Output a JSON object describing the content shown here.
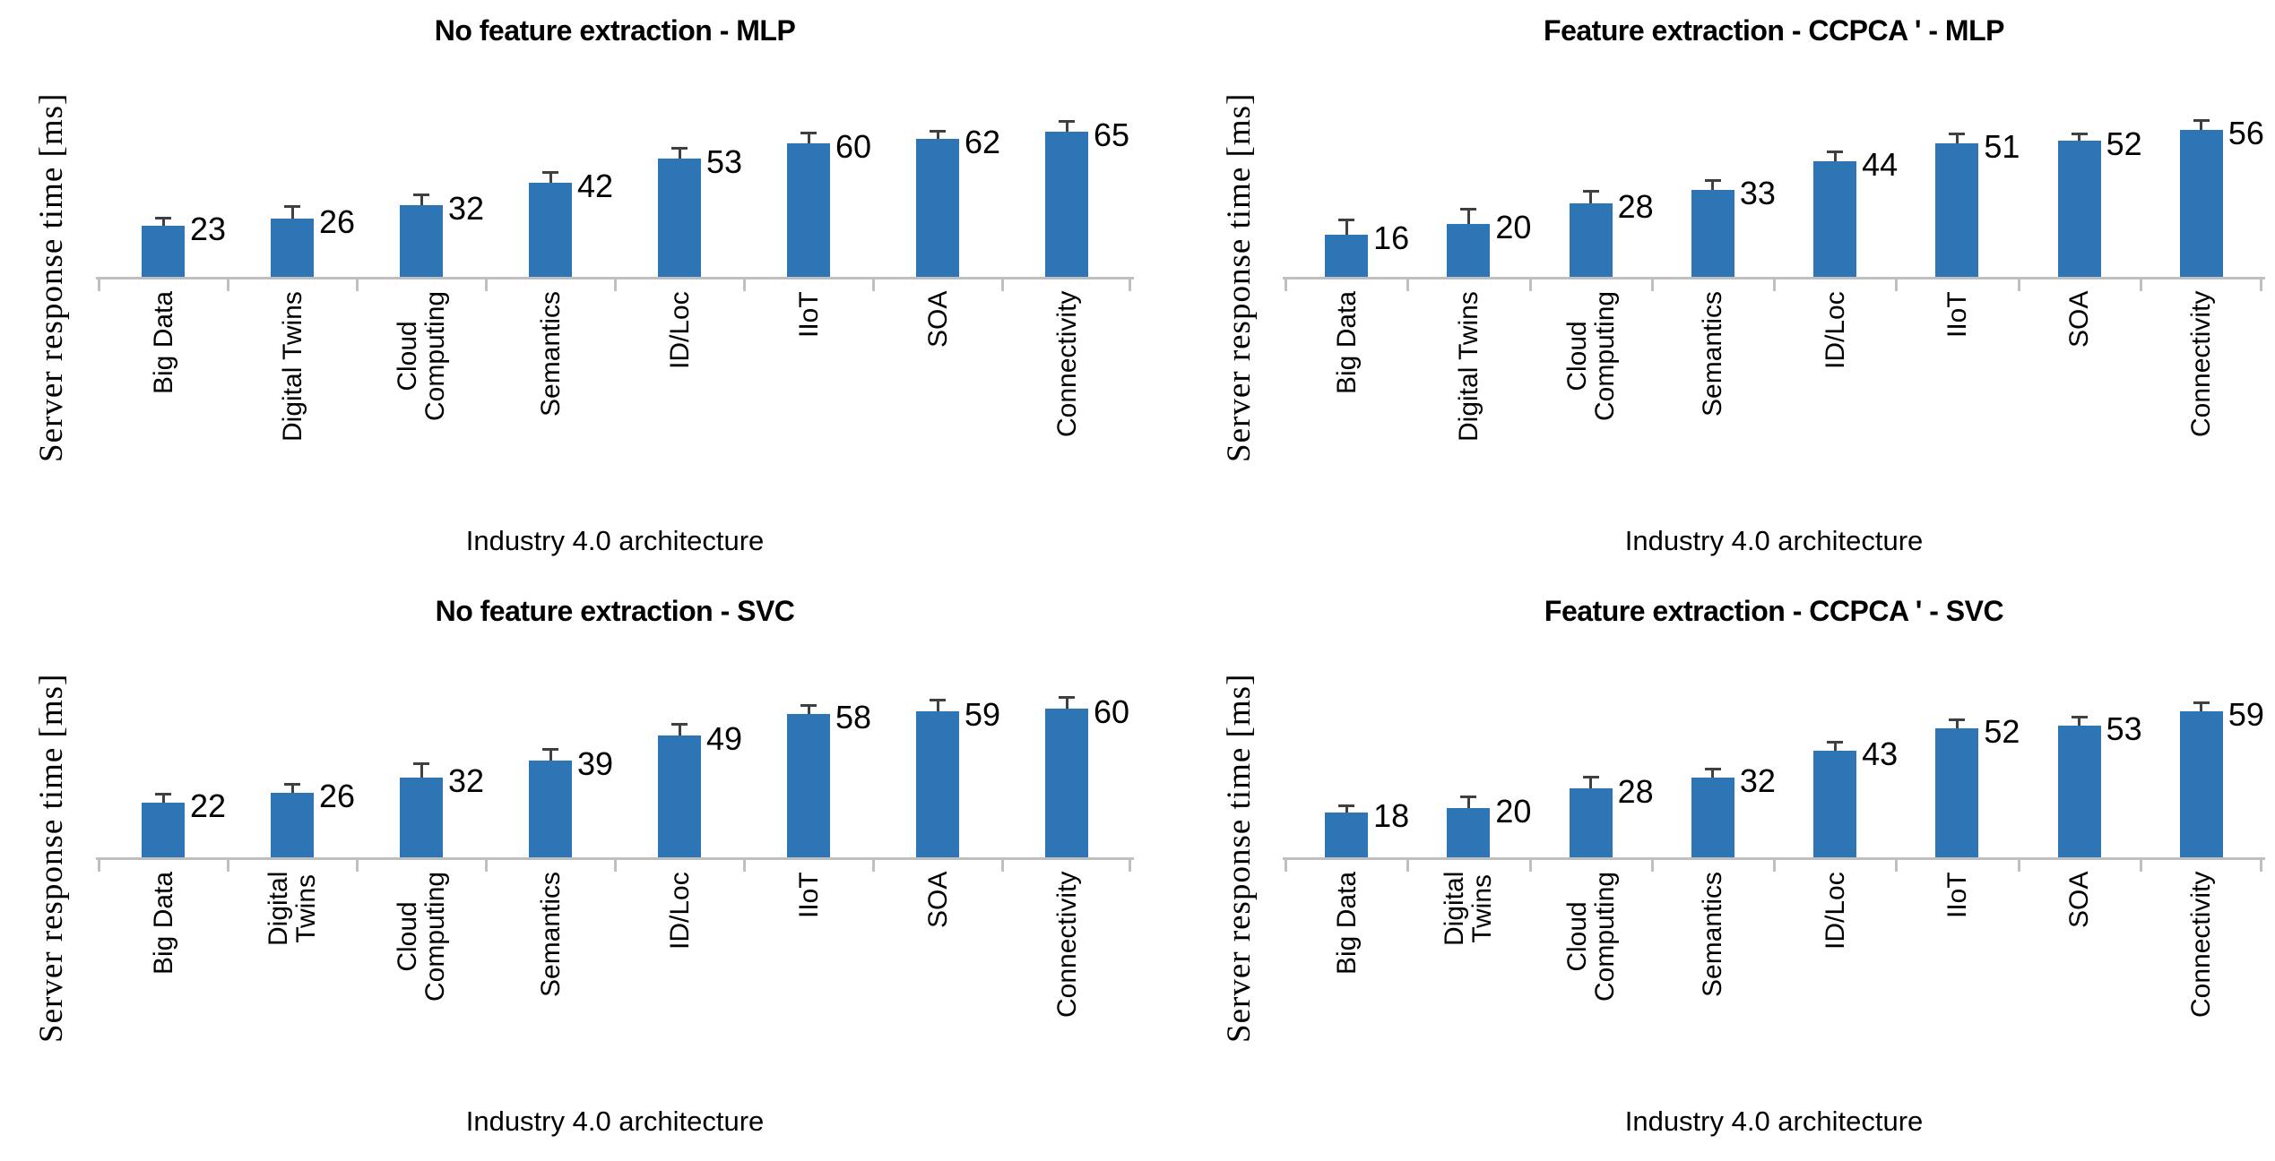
{
  "page": {
    "background": "#ffffff"
  },
  "colors": {
    "bar": "#2E75B6",
    "axis": "#BFBFBF",
    "error_bar": "#404040",
    "text": "#000000"
  },
  "chart_data": [
    {
      "type": "bar",
      "title": "No feature extraction - MLP",
      "ylabel": "Server response time [ms]",
      "xlabel": "Industry 4.0 architecture",
      "categories": [
        "Big Data",
        "Digital Twins",
        "Cloud\nComputing",
        "Semantics",
        "ID/Loc",
        "IIoT",
        "SOA",
        "Connectivity"
      ],
      "values": [
        23,
        26,
        32,
        42,
        53,
        60,
        62,
        65
      ],
      "errors": [
        3,
        5,
        4,
        4,
        4,
        4,
        3,
        4
      ],
      "ylim": [
        0,
        100
      ],
      "grid": false,
      "legend": false,
      "data_label_position": "right-of-bar-top",
      "bar_color": "#2E75B6"
    },
    {
      "type": "bar",
      "title": "Feature extraction - CCPCA ' - MLP",
      "ylabel": "Server response time [ms]",
      "xlabel": "Industry 4.0 architecture",
      "categories": [
        "Big Data",
        "Digital Twins",
        "Cloud\nComputing",
        "Semantics",
        "ID/Loc",
        "IIoT",
        "SOA",
        "Connectivity"
      ],
      "values": [
        16,
        20,
        28,
        33,
        44,
        51,
        52,
        56
      ],
      "errors": [
        5,
        5,
        4,
        3,
        3,
        3,
        2,
        3
      ],
      "ylim": [
        0,
        85
      ],
      "grid": false,
      "legend": false,
      "data_label_position": "right-of-bar-top",
      "bar_color": "#2E75B6"
    },
    {
      "type": "bar",
      "title": "No feature extraction - SVC",
      "ylabel": "Server response time [ms]",
      "xlabel": "Industry 4.0 architecture",
      "categories": [
        "Big Data",
        "Digital\nTwins",
        "Cloud\nComputing",
        "Semantics",
        "ID/Loc",
        "IIoT",
        "SOA",
        "Connectivity"
      ],
      "values": [
        22,
        26,
        32,
        39,
        49,
        58,
        59,
        60
      ],
      "errors": [
        3,
        3,
        5,
        4,
        4,
        3,
        4,
        4
      ],
      "ylim": [
        0,
        90
      ],
      "grid": false,
      "legend": false,
      "data_label_position": "right-of-bar-top",
      "bar_color": "#2E75B6"
    },
    {
      "type": "bar",
      "title": "Feature extraction - CCPCA ' - SVC",
      "ylabel": "Server response time [ms]",
      "xlabel": "Industry 4.0 architecture",
      "categories": [
        "Big Data",
        "Digital\nTwins",
        "Cloud\nComputing",
        "Semantics",
        "ID/Loc",
        "IIoT",
        "SOA",
        "Connectivity"
      ],
      "values": [
        18,
        20,
        28,
        32,
        43,
        52,
        53,
        59
      ],
      "errors": [
        2,
        4,
        4,
        3,
        3,
        3,
        3,
        3
      ],
      "ylim": [
        0,
        90
      ],
      "grid": false,
      "legend": false,
      "data_label_position": "right-of-bar-top",
      "bar_color": "#2E75B6"
    }
  ]
}
